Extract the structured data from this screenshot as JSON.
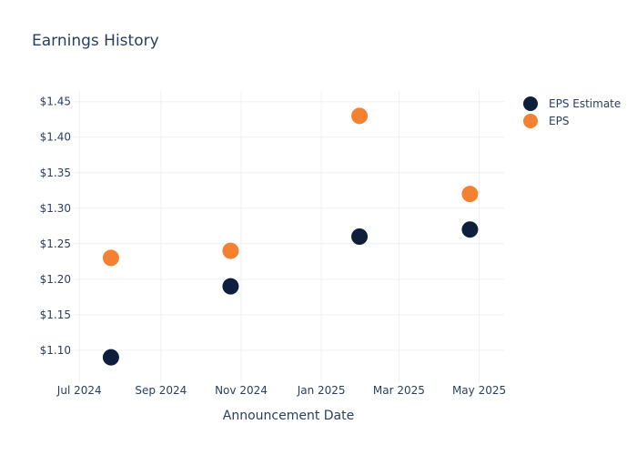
{
  "chart_data": {
    "type": "scatter",
    "title": "Earnings History",
    "xlabel": "Announcement Date",
    "ylabel": "",
    "x_tick_labels": [
      "Jul 2024",
      "Sep 2024",
      "Nov 2024",
      "Jan 2025",
      "Mar 2025",
      "May 2025"
    ],
    "y_tick_labels": [
      "$1.10",
      "$1.15",
      "$1.20",
      "$1.25",
      "$1.30",
      "$1.35",
      "$1.40",
      "$1.45"
    ],
    "ylim": [
      1.055,
      1.465
    ],
    "xlim": [
      "2024-06-26",
      "2025-05-20"
    ],
    "x_ticks": [
      "2024-07-01",
      "2024-09-01",
      "2024-11-01",
      "2025-01-01",
      "2025-03-01",
      "2025-05-01"
    ],
    "y_ticks": [
      1.1,
      1.15,
      1.2,
      1.25,
      1.3,
      1.35,
      1.4,
      1.45
    ],
    "grid": true,
    "legend_position": "top-right",
    "series": [
      {
        "name": "EPS Estimate",
        "color": "#0d1f3c",
        "points": [
          {
            "x": "2024-07-25",
            "y": 1.09
          },
          {
            "x": "2024-10-24",
            "y": 1.19
          },
          {
            "x": "2025-01-30",
            "y": 1.26
          },
          {
            "x": "2025-04-24",
            "y": 1.27
          }
        ]
      },
      {
        "name": "EPS",
        "color": "#f48132",
        "points": [
          {
            "x": "2024-07-25",
            "y": 1.23
          },
          {
            "x": "2024-10-24",
            "y": 1.24
          },
          {
            "x": "2025-01-30",
            "y": 1.43
          },
          {
            "x": "2025-04-24",
            "y": 1.32
          }
        ]
      }
    ]
  }
}
